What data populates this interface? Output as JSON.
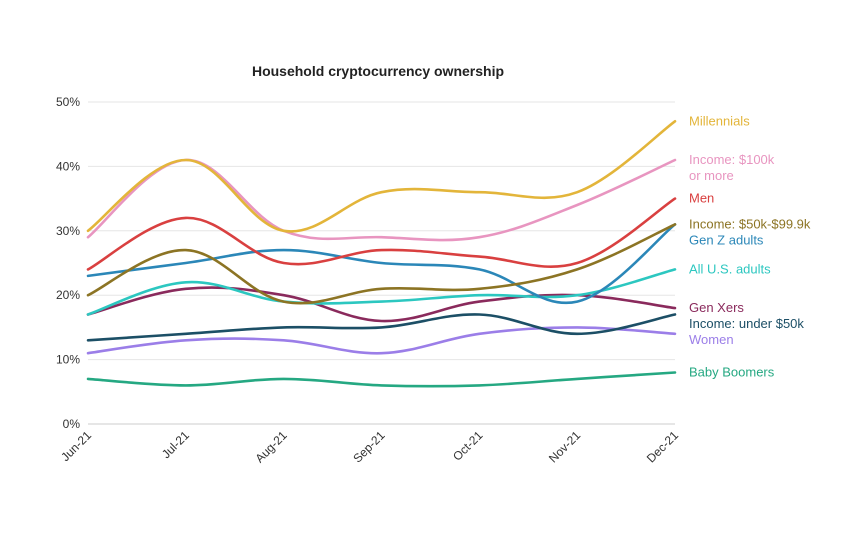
{
  "chart_data": {
    "type": "line",
    "title": "Household cryptocurrency ownership",
    "xlabel": "",
    "ylabel": "",
    "categories": [
      "Jun-21",
      "Jul-21",
      "Aug-21",
      "Sep-21",
      "Oct-21",
      "Nov-21",
      "Dec-21"
    ],
    "ylim": [
      0,
      50
    ],
    "yticks": [
      0,
      10,
      20,
      30,
      40,
      50
    ],
    "ytick_labels": [
      "0%",
      "10%",
      "20%",
      "30%",
      "40%",
      "50%"
    ],
    "grid": true,
    "legend_position": "right",
    "series": [
      {
        "name": "Millennials",
        "legend_lines": [
          "Millennials"
        ],
        "color": "#e3b53a",
        "values": [
          30,
          41,
          30,
          36,
          36,
          36,
          47
        ]
      },
      {
        "name": "Income: $100k or more",
        "legend_lines": [
          "Income: $100k",
          "or more"
        ],
        "color": "#e895c0",
        "values": [
          29,
          41,
          30,
          29,
          29,
          34,
          41
        ]
      },
      {
        "name": "Men",
        "legend_lines": [
          "Men"
        ],
        "color": "#d94040",
        "values": [
          24,
          32,
          25,
          27,
          26,
          25,
          35
        ]
      },
      {
        "name": "Income: $50k-$99.9k",
        "legend_lines": [
          "Income: $50k-$99.9k"
        ],
        "color": "#8c7424",
        "values": [
          20,
          27,
          19,
          21,
          21,
          24,
          31
        ]
      },
      {
        "name": "Gen Z adults",
        "legend_lines": [
          "Gen Z adults"
        ],
        "color": "#2b87b8",
        "values": [
          23,
          25,
          27,
          25,
          24,
          19,
          31
        ]
      },
      {
        "name": "All U.S. adults",
        "legend_lines": [
          "All U.S. adults"
        ],
        "color": "#2cc7c0",
        "values": [
          17,
          22,
          19,
          19,
          20,
          20,
          24
        ]
      },
      {
        "name": "Gen Xers",
        "legend_lines": [
          "Gen Xers"
        ],
        "color": "#8a2a5c",
        "values": [
          17,
          21,
          20,
          16,
          19,
          20,
          18
        ]
      },
      {
        "name": "Income: under $50k",
        "legend_lines": [
          "Income: under $50k"
        ],
        "color": "#1c4f66",
        "values": [
          13,
          14,
          15,
          15,
          17,
          14,
          17
        ]
      },
      {
        "name": "Women",
        "legend_lines": [
          "Women"
        ],
        "color": "#9b7ee8",
        "values": [
          11,
          13,
          13,
          11,
          14,
          15,
          14
        ]
      },
      {
        "name": "Baby Boomers",
        "legend_lines": [
          "Baby Boomers"
        ],
        "color": "#25a882",
        "values": [
          7,
          6,
          7,
          6,
          6,
          7,
          8
        ]
      }
    ]
  }
}
